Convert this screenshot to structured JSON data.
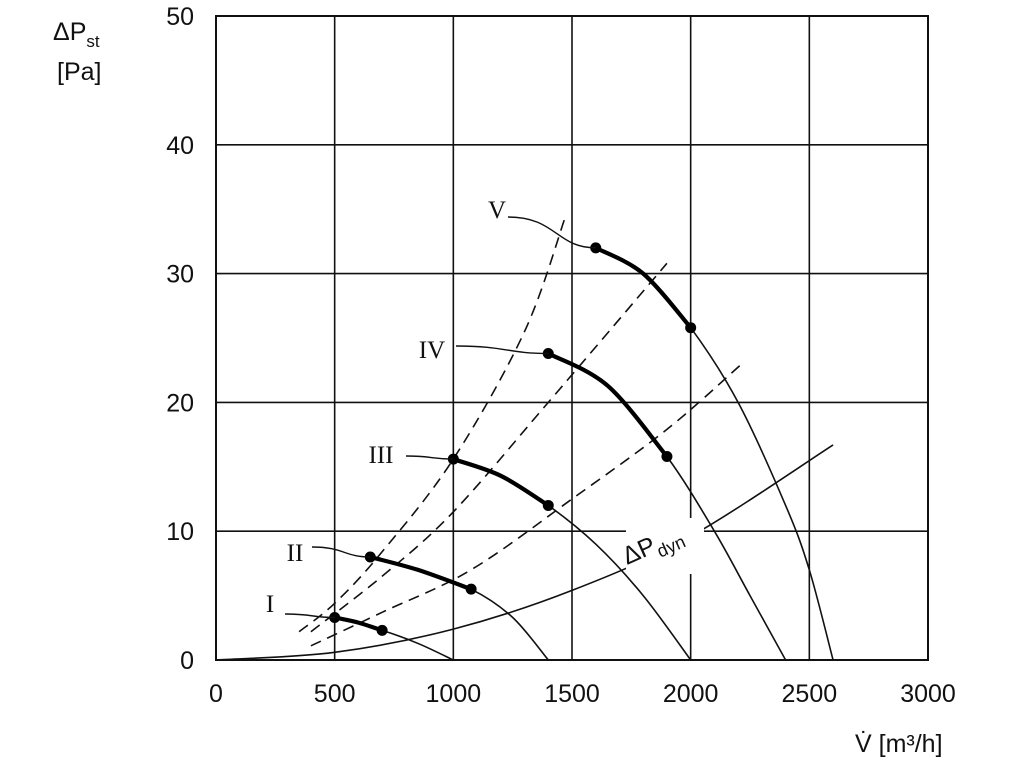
{
  "chart_data": {
    "type": "line",
    "xlabel": "V̇ [m³/h]",
    "ylabel_line1": "ΔP",
    "ylabel_sub": "st",
    "ylabel_line2": "[Pa]",
    "xlim": [
      0,
      3000
    ],
    "ylim": [
      0,
      50
    ],
    "xticks": [
      0,
      500,
      1000,
      1500,
      2000,
      2500,
      3000
    ],
    "yticks": [
      0,
      10,
      20,
      30,
      40,
      50
    ],
    "xtick_labels": [
      "0",
      "500",
      "1000",
      "1500",
      "2000",
      "2500",
      "3000"
    ],
    "ytick_labels": [
      "0",
      "10",
      "20",
      "30",
      "40",
      "50"
    ],
    "grid": true,
    "fan_curves": [
      {
        "label": "I",
        "points": [
          [
            500,
            3.3
          ],
          [
            700,
            2.3
          ],
          [
            850,
            1.3
          ],
          [
            1000,
            0
          ]
        ],
        "operating_range": [
          [
            500,
            3.3
          ],
          [
            600,
            2.9
          ],
          [
            700,
            2.3
          ]
        ],
        "markers": [
          [
            500,
            3.3
          ],
          [
            700,
            2.3
          ]
        ],
        "label_at": [
          270,
          604
        ],
        "leader_from": [
          285,
          614
        ],
        "leader_to": [
          500,
          3.3
        ]
      },
      {
        "label": "II",
        "points": [
          [
            650,
            8.0
          ],
          [
            850,
            7.0
          ],
          [
            1075,
            5.5
          ],
          [
            1250,
            3.3
          ],
          [
            1400,
            0
          ]
        ],
        "operating_range": [
          [
            650,
            8.0
          ],
          [
            850,
            7.0
          ],
          [
            1075,
            5.5
          ]
        ],
        "markers": [
          [
            650,
            8.0
          ],
          [
            1075,
            5.5
          ]
        ],
        "label_at": [
          295,
          553
        ],
        "leader_from": [
          312,
          547
        ],
        "leader_to": [
          650,
          8.0
        ]
      },
      {
        "label": "III",
        "points": [
          [
            1000,
            15.6
          ],
          [
            1200,
            14.3
          ],
          [
            1400,
            12.0
          ],
          [
            1600,
            9.0
          ],
          [
            1800,
            5.0
          ],
          [
            2000,
            0
          ]
        ],
        "operating_range": [
          [
            1000,
            15.6
          ],
          [
            1200,
            14.3
          ],
          [
            1400,
            12.0
          ]
        ],
        "markers": [
          [
            1000,
            15.6
          ],
          [
            1400,
            12.0
          ]
        ],
        "label_at": [
          381,
          455
        ],
        "leader_from": [
          406,
          456
        ],
        "leader_to": [
          1000,
          15.6
        ]
      },
      {
        "label": "IV",
        "points": [
          [
            1400,
            23.8
          ],
          [
            1650,
            21.3
          ],
          [
            1900,
            15.8
          ],
          [
            2100,
            10.0
          ],
          [
            2250,
            5.0
          ],
          [
            2400,
            0
          ]
        ],
        "operating_range": [
          [
            1400,
            23.8
          ],
          [
            1650,
            21.3
          ],
          [
            1900,
            15.8
          ]
        ],
        "markers": [
          [
            1400,
            23.8
          ],
          [
            1900,
            15.8
          ]
        ],
        "label_at": [
          432,
          350
        ],
        "leader_from": [
          456,
          346
        ],
        "leader_to": [
          1400,
          23.8
        ]
      },
      {
        "label": "V",
        "points": [
          [
            1600,
            32.0
          ],
          [
            1800,
            30.0
          ],
          [
            2000,
            25.8
          ],
          [
            2200,
            20.0
          ],
          [
            2400,
            12.0
          ],
          [
            2500,
            7.0
          ],
          [
            2600,
            0
          ]
        ],
        "operating_range": [
          [
            1600,
            32.0
          ],
          [
            1800,
            30.0
          ],
          [
            2000,
            25.8
          ]
        ],
        "markers": [
          [
            1600,
            32.0
          ],
          [
            2000,
            25.8
          ]
        ],
        "label_at": [
          497,
          210
        ],
        "leader_from": [
          508,
          217
        ],
        "leader_to": [
          1600,
          32.0
        ]
      }
    ],
    "dynamic_pressure_curve": {
      "label_main": "ΔP",
      "label_sub": "dyn",
      "points": [
        [
          0,
          0
        ],
        [
          500,
          0.6
        ],
        [
          1000,
          2.4
        ],
        [
          1500,
          5.4
        ],
        [
          2000,
          9.6
        ],
        [
          2600,
          16.7
        ]
      ]
    },
    "system_curves": [
      {
        "points": [
          [
            350,
            2.2
          ],
          [
            500,
            4.4
          ],
          [
            700,
            8.4
          ],
          [
            1000,
            15.6
          ],
          [
            1300,
            25.5
          ],
          [
            1470,
            34.3
          ]
        ]
      },
      {
        "points": [
          [
            400,
            2.2
          ],
          [
            700,
            6.5
          ],
          [
            1000,
            11.5
          ],
          [
            1400,
            20.0
          ],
          [
            1900,
            30.8
          ]
        ]
      },
      {
        "points": [
          [
            400,
            1.1
          ],
          [
            700,
            3.7
          ],
          [
            1075,
            7.0
          ],
          [
            1500,
            12.5
          ],
          [
            1900,
            17.9
          ],
          [
            2210,
            22.9
          ]
        ]
      }
    ]
  }
}
